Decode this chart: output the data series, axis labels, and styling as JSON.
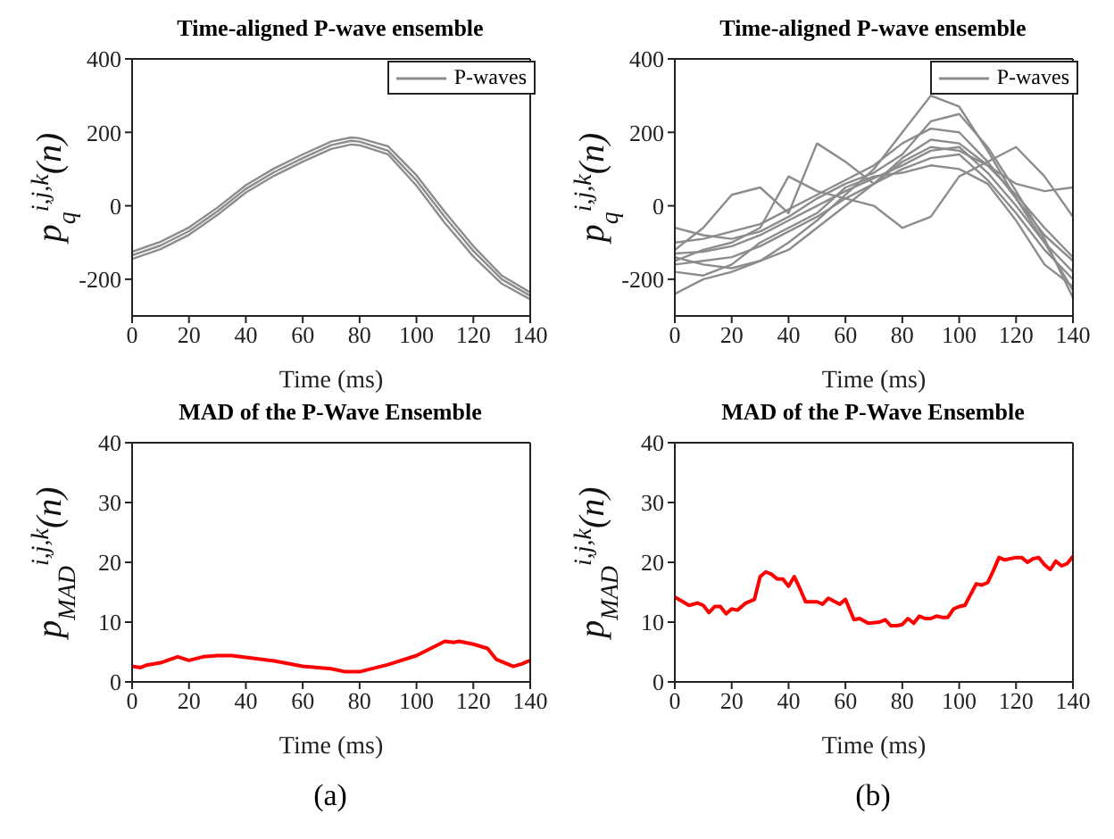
{
  "chart_data": [
    {
      "type": "line",
      "title": "Time-aligned P-wave ensemble",
      "xlabel": "Time (ms)",
      "ylabel": "p$_{q}$$^{i,j,k}$(n)",
      "xlim": [
        0,
        140
      ],
      "xticks": [
        0,
        20,
        40,
        60,
        80,
        100,
        120,
        140
      ],
      "ylim": [
        -300,
        400
      ],
      "yticks": [
        -200,
        0,
        200,
        400
      ],
      "legend": "top right",
      "line_style": "solid",
      "marker": "none",
      "series": [
        {
          "name": "P-waves",
          "color": "#8c8c8c",
          "x": [
            0,
            10,
            20,
            30,
            40,
            50,
            60,
            70,
            77,
            80,
            90,
            100,
            110,
            120,
            130,
            140
          ],
          "values": [
            -135,
            -108,
            -69,
            -15,
            46,
            92,
            130,
            165,
            177,
            175,
            150,
            69,
            -31,
            -123,
            -200,
            -245
          ]
        },
        {
          "color": "#8c8c8c",
          "x": [
            0,
            10,
            20,
            30,
            40,
            50,
            60,
            70,
            77,
            80,
            90,
            100,
            110,
            120,
            130,
            140
          ],
          "values": [
            -145,
            -118,
            -79,
            -25,
            36,
            82,
            120,
            155,
            167,
            165,
            140,
            55,
            -47,
            -138,
            -212,
            -255
          ]
        },
        {
          "color": "#8c8c8c",
          "x": [
            0,
            10,
            20,
            30,
            40,
            50,
            60,
            70,
            77,
            80,
            90,
            100,
            110,
            120,
            130,
            140
          ],
          "values": [
            -125,
            -98,
            -59,
            -5,
            56,
            102,
            140,
            175,
            186,
            184,
            162,
            83,
            -17,
            -110,
            -190,
            -236
          ]
        }
      ]
    },
    {
      "type": "line",
      "title": "Time-aligned P-wave ensemble",
      "xlabel": "Time (ms)",
      "ylabel": "p$_{q}$$^{i,j,k}$(n)",
      "xlim": [
        0,
        140
      ],
      "xticks": [
        0,
        20,
        40,
        60,
        80,
        100,
        120,
        140
      ],
      "ylim": [
        -300,
        400
      ],
      "yticks": [
        -200,
        0,
        200,
        400
      ],
      "legend": "top right",
      "line_style": "solid",
      "marker": "none",
      "series": [
        {
          "name": "P-waves",
          "color": "#8c8c8c",
          "x": [
            0,
            10,
            20,
            30,
            40,
            50,
            60,
            70,
            80,
            90,
            100,
            110,
            120,
            130,
            140
          ],
          "values": [
            -130,
            -125,
            -110,
            -80,
            -40,
            0,
            40,
            75,
            110,
            150,
            160,
            90,
            0,
            -100,
            -180
          ]
        },
        {
          "color": "#8c8c8c",
          "x": [
            0,
            10,
            20,
            30,
            40,
            50,
            60,
            70,
            80,
            90,
            100,
            110,
            120,
            130,
            140
          ],
          "values": [
            -160,
            -150,
            -140,
            -110,
            -70,
            -30,
            20,
            60,
            100,
            130,
            140,
            70,
            -20,
            -120,
            -200
          ]
        },
        {
          "color": "#8c8c8c",
          "x": [
            0,
            10,
            20,
            30,
            40,
            50,
            60,
            70,
            80,
            90,
            100,
            110,
            120,
            130,
            140
          ],
          "values": [
            -100,
            -90,
            -70,
            -50,
            -10,
            30,
            70,
            110,
            170,
            210,
            200,
            120,
            20,
            -80,
            -150
          ]
        },
        {
          "color": "#8c8c8c",
          "x": [
            0,
            10,
            20,
            30,
            40,
            50,
            60,
            70,
            80,
            90,
            100,
            110,
            120,
            130,
            140
          ],
          "values": [
            -140,
            -160,
            -170,
            -150,
            -100,
            -40,
            30,
            100,
            200,
            300,
            270,
            150,
            20,
            -100,
            -230
          ]
        },
        {
          "color": "#8c8c8c",
          "x": [
            0,
            10,
            20,
            30,
            40,
            50,
            60,
            70,
            80,
            90,
            100,
            110,
            120,
            130,
            140
          ],
          "values": [
            -120,
            -60,
            30,
            50,
            -20,
            170,
            120,
            60,
            130,
            180,
            170,
            110,
            30,
            -60,
            -140
          ]
        },
        {
          "color": "#8c8c8c",
          "x": [
            0,
            10,
            20,
            30,
            40,
            50,
            60,
            70,
            80,
            90,
            100,
            110,
            120,
            130,
            140
          ],
          "values": [
            -150,
            -120,
            -100,
            -60,
            80,
            40,
            20,
            0,
            -60,
            -30,
            80,
            120,
            160,
            80,
            -30
          ]
        },
        {
          "color": "#8c8c8c",
          "x": [
            0,
            10,
            20,
            30,
            40,
            50,
            60,
            70,
            80,
            90,
            100,
            110,
            120,
            130,
            140
          ],
          "values": [
            -240,
            -200,
            -180,
            -150,
            -120,
            -60,
            0,
            60,
            120,
            160,
            150,
            110,
            60,
            40,
            50
          ]
        },
        {
          "color": "#8c8c8c",
          "x": [
            0,
            10,
            20,
            30,
            40,
            50,
            60,
            70,
            80,
            90,
            100,
            110,
            120,
            130,
            140
          ],
          "values": [
            -60,
            -80,
            -90,
            -70,
            -30,
            20,
            60,
            90,
            140,
            230,
            250,
            160,
            40,
            -90,
            -250
          ]
        },
        {
          "color": "#8c8c8c",
          "x": [
            0,
            10,
            20,
            30,
            40,
            50,
            60,
            70,
            80,
            90,
            100,
            110,
            120,
            130,
            140
          ],
          "values": [
            -180,
            -190,
            -160,
            -100,
            -60,
            -20,
            50,
            80,
            90,
            110,
            100,
            60,
            -40,
            -160,
            -220
          ]
        }
      ]
    },
    {
      "type": "line",
      "title": "MAD of the P-Wave Ensemble",
      "xlabel": "Time (ms)",
      "ylabel": "p$_{MAD}$$^{i,j,k}$(n)",
      "xlim": [
        0,
        140
      ],
      "xticks": [
        0,
        20,
        40,
        60,
        80,
        100,
        120,
        140
      ],
      "ylim": [
        0,
        40
      ],
      "yticks": [
        0,
        10,
        20,
        30,
        40
      ],
      "line_style": "solid",
      "marker": "none",
      "annotations": [
        "(a)"
      ],
      "series": [
        {
          "color": "#ff0000",
          "x": [
            0,
            3,
            5,
            10,
            16,
            20,
            25,
            30,
            35,
            40,
            50,
            60,
            70,
            75,
            80,
            85,
            90,
            100,
            105,
            110,
            113,
            115,
            120,
            125,
            128,
            134,
            137,
            140
          ],
          "values": [
            2.6,
            2.4,
            2.8,
            3.2,
            4.2,
            3.6,
            4.2,
            4.4,
            4.4,
            4.1,
            3.5,
            2.6,
            2.2,
            1.7,
            1.7,
            2.3,
            2.9,
            4.4,
            5.6,
            6.8,
            6.6,
            6.8,
            6.3,
            5.6,
            3.8,
            2.6,
            3.0,
            3.6
          ]
        }
      ]
    },
    {
      "type": "line",
      "title": "MAD of the P-Wave Ensemble",
      "xlabel": "Time (ms)",
      "ylabel": "p$_{MAD}$$^{i,j,k}$(n)",
      "xlim": [
        0,
        140
      ],
      "xticks": [
        0,
        20,
        40,
        60,
        80,
        100,
        120,
        140
      ],
      "ylim": [
        0,
        40
      ],
      "yticks": [
        0,
        10,
        20,
        30,
        40
      ],
      "line_style": "solid",
      "marker": "none",
      "annotations": [
        "(b)"
      ],
      "series": [
        {
          "color": "#ff0000",
          "x": [
            0,
            5,
            8,
            10,
            12,
            14,
            16,
            18,
            20,
            22,
            25,
            28,
            30,
            32,
            34,
            36,
            38,
            40,
            42,
            44,
            46,
            50,
            52,
            54,
            58,
            60,
            63,
            65,
            68,
            72,
            74,
            76,
            78,
            80,
            82,
            84,
            86,
            88,
            90,
            92,
            94,
            96,
            98,
            100,
            102,
            104,
            106,
            108,
            110,
            112,
            114,
            116,
            120,
            122,
            124,
            126,
            128,
            130,
            132,
            134,
            136,
            138,
            140
          ],
          "values": [
            14.2,
            12.8,
            13.2,
            12.8,
            11.6,
            12.6,
            12.6,
            11.4,
            12.2,
            12.0,
            13.2,
            13.8,
            17.6,
            18.4,
            18.0,
            17.2,
            17.2,
            16.0,
            17.6,
            15.6,
            13.4,
            13.4,
            13.0,
            14.0,
            13.0,
            13.8,
            10.4,
            10.6,
            9.8,
            10.0,
            10.4,
            9.4,
            9.4,
            9.6,
            10.6,
            9.8,
            11.0,
            10.6,
            10.6,
            11.0,
            10.8,
            10.8,
            12.2,
            12.6,
            12.8,
            14.6,
            16.4,
            16.2,
            16.6,
            18.6,
            20.8,
            20.4,
            20.8,
            20.8,
            20.0,
            20.6,
            20.8,
            19.6,
            18.8,
            20.2,
            19.4,
            19.8,
            21.0
          ]
        }
      ]
    }
  ]
}
